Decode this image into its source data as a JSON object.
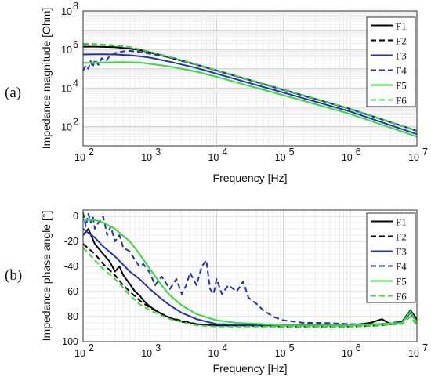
{
  "chart_data": [
    {
      "panel_label": "(a)",
      "type": "line",
      "xlabel": "Frequency [Hz]",
      "ylabel": "Impedance magnitude [Ohm]",
      "x_scale": "log",
      "y_scale": "log",
      "xlim": [
        100,
        10000000
      ],
      "ylim": [
        10,
        100000000
      ],
      "xticks": [
        {
          "value": 100,
          "base": "10",
          "exp": "2"
        },
        {
          "value": 1000,
          "base": "10",
          "exp": "3"
        },
        {
          "value": 10000,
          "base": "10",
          "exp": "4"
        },
        {
          "value": 100000,
          "base": "10",
          "exp": "5"
        },
        {
          "value": 1000000,
          "base": "10",
          "exp": "6"
        },
        {
          "value": 10000000,
          "base": "10",
          "exp": "7"
        }
      ],
      "yticks": [
        {
          "value": 100,
          "base": "10",
          "exp": "2"
        },
        {
          "value": 10000,
          "base": "10",
          "exp": "4"
        },
        {
          "value": 1000000,
          "base": "10",
          "exp": "6"
        },
        {
          "value": 100000000,
          "base": "10",
          "exp": "8"
        }
      ],
      "grid": true,
      "legend_position": "top-right",
      "series": [
        {
          "name": "F1",
          "color": "#000000",
          "dash": "solid",
          "x": [
            100,
            150,
            200,
            300,
            500,
            700,
            1000,
            2000,
            5000,
            10000,
            100000,
            1000000,
            10000000
          ],
          "y": [
            1400000,
            1400000,
            1350000,
            1300000,
            1100000,
            950000,
            700000,
            380000,
            160000,
            80000,
            8000,
            800,
            60
          ]
        },
        {
          "name": "F2",
          "color": "#000000",
          "dash": "dashed",
          "x": [
            100,
            150,
            200,
            300,
            500,
            700,
            1000,
            2000,
            5000,
            10000,
            100000,
            1000000,
            10000000
          ],
          "y": [
            1900000,
            1850000,
            1750000,
            1600000,
            1300000,
            1000000,
            750000,
            400000,
            165000,
            82000,
            8200,
            820,
            60
          ]
        },
        {
          "name": "F3",
          "color": "#2233bb",
          "dash": "solid",
          "x": [
            100,
            150,
            200,
            300,
            500,
            700,
            1000,
            2000,
            5000,
            10000,
            100000,
            1000000,
            10000000
          ],
          "y": [
            550000,
            560000,
            560000,
            550000,
            500000,
            450000,
            380000,
            230000,
            110000,
            55000,
            5800,
            600,
            40
          ]
        },
        {
          "name": "F4",
          "color": "#2233bb",
          "dash": "dashed",
          "x": [
            100,
            110,
            120,
            130,
            140,
            150,
            170,
            190,
            220,
            250,
            300,
            400,
            500,
            700,
            1000,
            2000,
            5000,
            10000,
            100000,
            1000000,
            10000000
          ],
          "y": [
            80000,
            150000,
            100000,
            250000,
            120000,
            300000,
            160000,
            350000,
            250000,
            450000,
            650000,
            800000,
            850000,
            750000,
            600000,
            400000,
            165000,
            82000,
            8200,
            820,
            60
          ]
        },
        {
          "name": "F5",
          "color": "#33dd33",
          "dash": "solid",
          "x": [
            100,
            200,
            400,
            700,
            1000,
            2000,
            5000,
            10000,
            100000,
            1000000,
            10000000
          ],
          "y": [
            200000,
            210000,
            220000,
            210000,
            180000,
            130000,
            70000,
            38000,
            4200,
            450,
            30
          ]
        },
        {
          "name": "F6",
          "color": "#33dd33",
          "dash": "dashed",
          "x": [
            100,
            150,
            200,
            300,
            500,
            700,
            1000,
            2000,
            5000,
            10000,
            100000,
            1000000,
            10000000
          ],
          "y": [
            2000000,
            1900000,
            1800000,
            1600000,
            1300000,
            1000000,
            750000,
            400000,
            165000,
            82000,
            8200,
            820,
            60
          ]
        }
      ]
    },
    {
      "panel_label": "(b)",
      "type": "line",
      "xlabel": "Frequency [Hz]",
      "ylabel": "Impedance phase angle [°]",
      "x_scale": "log",
      "y_scale": "linear",
      "xlim": [
        100,
        10000000
      ],
      "ylim": [
        -100,
        5
      ],
      "xticks": [
        {
          "value": 100,
          "base": "10",
          "exp": "2"
        },
        {
          "value": 1000,
          "base": "10",
          "exp": "3"
        },
        {
          "value": 10000,
          "base": "10",
          "exp": "4"
        },
        {
          "value": 100000,
          "base": "10",
          "exp": "5"
        },
        {
          "value": 1000000,
          "base": "10",
          "exp": "6"
        },
        {
          "value": 10000000,
          "base": "10",
          "exp": "7"
        }
      ],
      "yticks": [
        {
          "value": 0,
          "label": "0"
        },
        {
          "value": -20,
          "label": "-20"
        },
        {
          "value": -40,
          "label": "-40"
        },
        {
          "value": -60,
          "label": "-60"
        },
        {
          "value": -80,
          "label": "-80"
        },
        {
          "value": -100,
          "label": "-100"
        }
      ],
      "grid": true,
      "legend_position": "top-right",
      "series": [
        {
          "name": "F1",
          "color": "#000000",
          "dash": "solid",
          "x": [
            100,
            120,
            150,
            200,
            250,
            300,
            350,
            400,
            500,
            600,
            700,
            800,
            1000,
            1500,
            2000,
            3000,
            5000,
            10000,
            100000,
            1000000,
            2000000,
            3000000,
            4000000,
            6000000,
            8000000,
            10000000
          ],
          "y": [
            -15,
            -10,
            -22,
            -30,
            -36,
            -44,
            -40,
            -47,
            -54,
            -60,
            -63,
            -67,
            -72,
            -78,
            -81,
            -84,
            -86,
            -87,
            -87,
            -87,
            -85,
            -82,
            -86,
            -84,
            -75,
            -82
          ]
        },
        {
          "name": "F2",
          "color": "#000000",
          "dash": "dashed",
          "x": [
            100,
            150,
            200,
            300,
            400,
            500,
            700,
            1000,
            2000,
            5000,
            10000,
            100000,
            1000000,
            3000000,
            6000000,
            8000000,
            10000000
          ],
          "y": [
            -22,
            -30,
            -38,
            -47,
            -55,
            -60,
            -67,
            -73,
            -81,
            -86,
            -87,
            -88,
            -88,
            -87,
            -85,
            -77,
            -85
          ]
        },
        {
          "name": "F3",
          "color": "#2233bb",
          "dash": "solid",
          "x": [
            100,
            150,
            200,
            300,
            500,
            700,
            1000,
            1500,
            2000,
            3000,
            5000,
            10000,
            100000,
            1000000,
            6000000,
            8000000,
            10000000
          ],
          "y": [
            -10,
            -17,
            -24,
            -32,
            -44,
            -50,
            -58,
            -66,
            -71,
            -77,
            -82,
            -86,
            -87,
            -87,
            -85,
            -75,
            -85
          ]
        },
        {
          "name": "F4",
          "color": "#2233bb",
          "dash": "dashed",
          "x": [
            100,
            110,
            120,
            130,
            140,
            150,
            170,
            200,
            230,
            260,
            300,
            350,
            400,
            500,
            600,
            700,
            800,
            1000,
            1200,
            1500,
            2000,
            2500,
            3000,
            3500,
            4000,
            5000,
            6000,
            7000,
            8000,
            9000,
            10000,
            12000,
            15000,
            20000,
            25000,
            30000,
            40000,
            50000,
            70000,
            100000,
            150000,
            200000,
            400000,
            1000000,
            3000000,
            6000000,
            8000000,
            10000000
          ],
          "y": [
            3,
            -8,
            2,
            -5,
            0,
            -10,
            -5,
            0,
            -15,
            -8,
            -20,
            -15,
            -25,
            -28,
            -35,
            -40,
            -38,
            -45,
            -55,
            -48,
            -58,
            -50,
            -62,
            -55,
            -45,
            -55,
            -40,
            -35,
            -58,
            -62,
            -50,
            -62,
            -55,
            -60,
            -52,
            -65,
            -70,
            -75,
            -80,
            -83,
            -84,
            -85,
            -85,
            -86,
            -86,
            -84,
            -77,
            -84
          ]
        },
        {
          "name": "F5",
          "color": "#33dd33",
          "dash": "solid",
          "x": [
            100,
            150,
            200,
            300,
            500,
            700,
            1000,
            1500,
            2000,
            3000,
            5000,
            10000,
            20000,
            50000,
            100000,
            1000000,
            6000000,
            8000000,
            10000000
          ],
          "y": [
            -3,
            -3,
            -5,
            -10,
            -20,
            -30,
            -42,
            -55,
            -63,
            -71,
            -78,
            -83,
            -85,
            -86,
            -87,
            -87,
            -85,
            -76,
            -85
          ]
        },
        {
          "name": "F6",
          "color": "#33dd33",
          "dash": "dashed",
          "x": [
            100,
            150,
            200,
            300,
            400,
            500,
            700,
            1000,
            2000,
            5000,
            10000,
            100000,
            1000000,
            6000000,
            8000000,
            10000000
          ],
          "y": [
            -25,
            -35,
            -42,
            -50,
            -57,
            -63,
            -70,
            -75,
            -82,
            -87,
            -88,
            -88,
            -88,
            -86,
            -80,
            -87
          ]
        }
      ]
    }
  ]
}
